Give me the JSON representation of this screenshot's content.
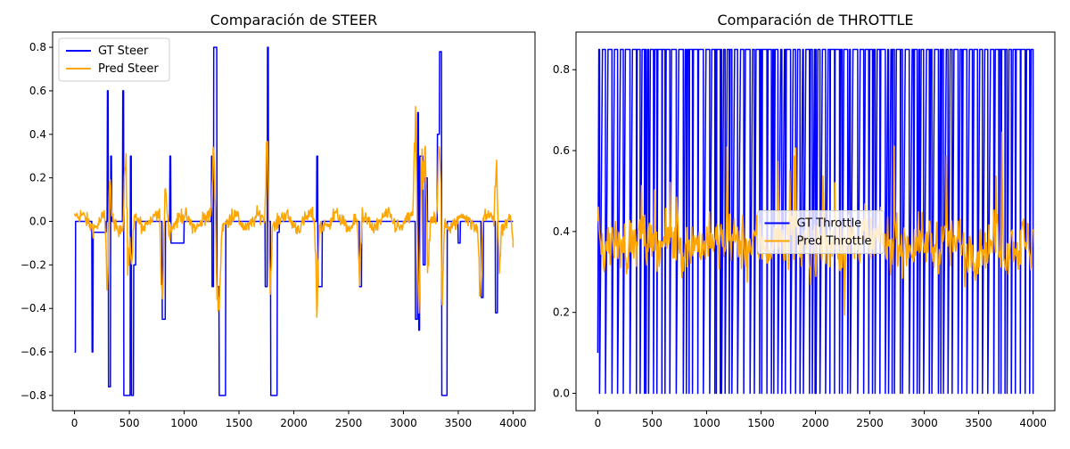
{
  "figure": {
    "background": "#ffffff"
  },
  "chart_data": [
    {
      "type": "line",
      "title": "Comparación de STEER",
      "xlabel": "",
      "ylabel": "",
      "xlim": [
        -200,
        4200
      ],
      "ylim": [
        -0.87,
        0.87
      ],
      "xticks": [
        0,
        500,
        1000,
        1500,
        2000,
        2500,
        3000,
        3500,
        4000
      ],
      "yticks": [
        -0.8,
        -0.6,
        -0.4,
        -0.2,
        0.0,
        0.2,
        0.4,
        0.6,
        0.8
      ],
      "xtick_labels": [
        "0",
        "500",
        "1000",
        "1500",
        "2000",
        "2500",
        "3000",
        "3500",
        "4000"
      ],
      "ytick_labels": [
        "−0.8",
        "−0.6",
        "−0.4",
        "−0.2",
        "0.0",
        "0.2",
        "0.4",
        "0.6",
        "0.8"
      ],
      "grid": false,
      "legend_position": "upper left",
      "series": [
        {
          "name": "GT Steer",
          "color": "#0000ff",
          "kind": "steer-gt",
          "key_points": [
            [
              0,
              -0.6
            ],
            [
              10,
              0.0
            ],
            [
              150,
              0.0
            ],
            [
              160,
              -0.6
            ],
            [
              170,
              -0.05
            ],
            [
              290,
              0.0
            ],
            [
              300,
              0.6
            ],
            [
              310,
              -0.76
            ],
            [
              330,
              0.3
            ],
            [
              340,
              0.0
            ],
            [
              430,
              0.0
            ],
            [
              440,
              0.6
            ],
            [
              450,
              -0.8
            ],
            [
              470,
              -0.8
            ],
            [
              510,
              0.3
            ],
            [
              520,
              -0.8
            ],
            [
              540,
              -0.2
            ],
            [
              560,
              0.0
            ],
            [
              790,
              0.0
            ],
            [
              800,
              -0.45
            ],
            [
              830,
              0.0
            ],
            [
              870,
              0.3
            ],
            [
              880,
              -0.1
            ],
            [
              1000,
              0.0
            ],
            [
              1230,
              0.0
            ],
            [
              1250,
              0.3
            ],
            [
              1255,
              -0.3
            ],
            [
              1270,
              0.8
            ],
            [
              1285,
              0.8
            ],
            [
              1300,
              -0.3
            ],
            [
              1320,
              -0.8
            ],
            [
              1370,
              -0.8
            ],
            [
              1380,
              0.0
            ],
            [
              1720,
              0.0
            ],
            [
              1740,
              -0.3
            ],
            [
              1760,
              0.8
            ],
            [
              1770,
              0.0
            ],
            [
              1790,
              -0.8
            ],
            [
              1840,
              -0.8
            ],
            [
              1850,
              -0.05
            ],
            [
              1870,
              0.0
            ],
            [
              2200,
              0.0
            ],
            [
              2210,
              0.3
            ],
            [
              2220,
              -0.3
            ],
            [
              2260,
              0.0
            ],
            [
              2590,
              0.0
            ],
            [
              2600,
              -0.3
            ],
            [
              2620,
              0.0
            ],
            [
              3100,
              0.0
            ],
            [
              3110,
              -0.45
            ],
            [
              3130,
              0.5
            ],
            [
              3140,
              -0.5
            ],
            [
              3150,
              0.3
            ],
            [
              3180,
              -0.2
            ],
            [
              3200,
              0.2
            ],
            [
              3220,
              0.0
            ],
            [
              3300,
              0.0
            ],
            [
              3310,
              0.4
            ],
            [
              3330,
              0.78
            ],
            [
              3350,
              -0.8
            ],
            [
              3380,
              -0.8
            ],
            [
              3400,
              0.0
            ],
            [
              3480,
              0.0
            ],
            [
              3500,
              -0.1
            ],
            [
              3520,
              0.0
            ],
            [
              3700,
              0.0
            ],
            [
              3710,
              -0.35
            ],
            [
              3730,
              0.0
            ],
            [
              3830,
              0.0
            ],
            [
              3840,
              -0.42
            ],
            [
              3860,
              0.0
            ],
            [
              4000,
              0.0
            ]
          ]
        },
        {
          "name": "Pred Steer",
          "color": "#ffa500",
          "kind": "steer-pred",
          "peaks": [
            [
              300,
              -0.5
            ],
            [
              320,
              0.25
            ],
            [
              470,
              0.65
            ],
            [
              480,
              -0.58
            ],
            [
              520,
              -0.3
            ],
            [
              800,
              -0.5
            ],
            [
              830,
              0.23
            ],
            [
              1270,
              0.43
            ],
            [
              1300,
              -0.35
            ],
            [
              1320,
              -0.45
            ],
            [
              1760,
              0.65
            ],
            [
              1780,
              -0.45
            ],
            [
              2210,
              -0.45
            ],
            [
              2600,
              -0.35
            ],
            [
              3110,
              0.58
            ],
            [
              3140,
              -0.5
            ],
            [
              3170,
              0.35
            ],
            [
              3200,
              0.45
            ],
            [
              3220,
              -0.35
            ],
            [
              3330,
              0.65
            ],
            [
              3350,
              -0.58
            ],
            [
              3700,
              -0.4
            ],
            [
              3850,
              0.4
            ],
            [
              3870,
              -0.3
            ],
            [
              4000,
              -0.12
            ]
          ]
        }
      ]
    },
    {
      "type": "line",
      "title": "Comparación de THROTTLE",
      "xlabel": "",
      "ylabel": "",
      "xlim": [
        -200,
        4200
      ],
      "ylim": [
        -0.043,
        0.893
      ],
      "xticks": [
        0,
        500,
        1000,
        1500,
        2000,
        2500,
        3000,
        3500,
        4000
      ],
      "yticks": [
        0.0,
        0.2,
        0.4,
        0.6,
        0.8
      ],
      "xtick_labels": [
        "0",
        "500",
        "1000",
        "1500",
        "2000",
        "2500",
        "3000",
        "3500",
        "4000"
      ],
      "ytick_labels": [
        "0.0",
        "0.2",
        "0.4",
        "0.6",
        "0.8"
      ],
      "grid": false,
      "legend_position": "center",
      "series": [
        {
          "name": "GT Throttle",
          "color": "#0000ff",
          "kind": "throttle-gt",
          "levels": [
            0.0,
            0.85
          ],
          "start": [
            [
              0,
              0.1
            ],
            [
              10,
              0.85
            ]
          ]
        },
        {
          "name": "Pred Throttle",
          "color": "#ffa500",
          "kind": "throttle-pred",
          "mean": 0.37,
          "range": [
            0.06,
            0.65
          ]
        }
      ]
    }
  ]
}
